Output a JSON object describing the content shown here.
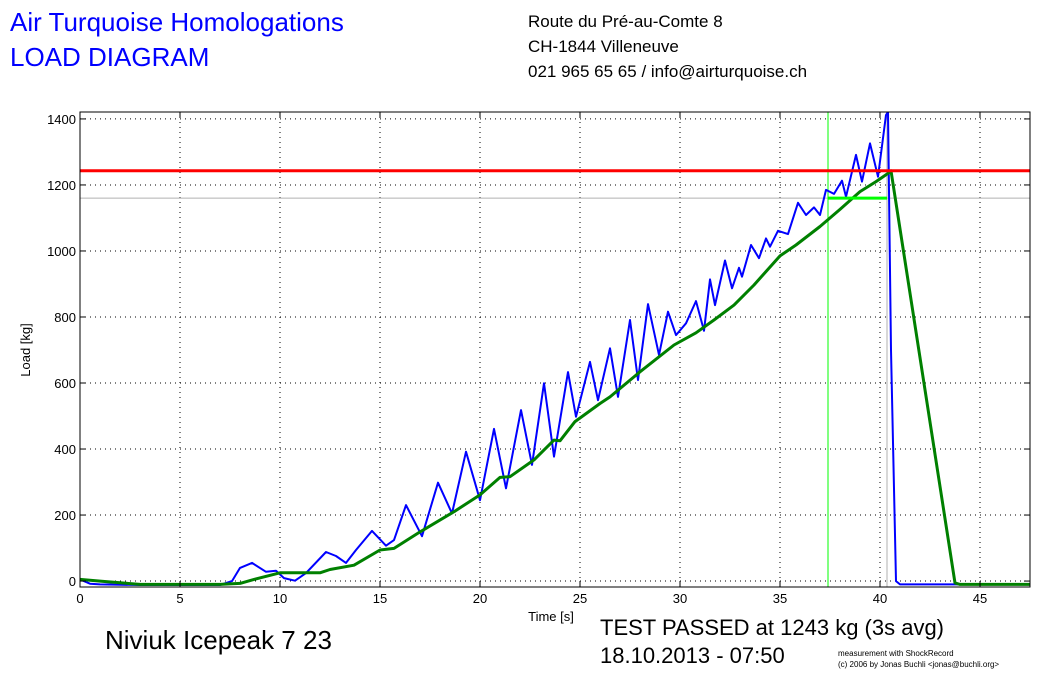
{
  "header": {
    "company": "Air Turquoise Homologations",
    "doc_title": "LOAD DIAGRAM",
    "address_line1": "Route du Pré-au-Comte 8",
    "address_line2": "CH-1844 Villeneuve",
    "contact": "021 965 65 65 / info@airturquoise.ch"
  },
  "footer": {
    "glider": "Niviuk Icepeak 7 23",
    "result": "TEST PASSED at 1243 kg (3s avg)",
    "datetime": "18.10.2013 - 07:50",
    "credit1": "measurement with ShockRecord",
    "credit2": "(c) 2006 by Jonas Buchli <jonas@buchli.org>"
  },
  "chart_data": {
    "type": "line",
    "xlabel": "Time [s]",
    "ylabel": "Load [kg]",
    "xlim": [
      0,
      47.5
    ],
    "ylim": [
      -18,
      1421
    ],
    "xticks": [
      0,
      5,
      10,
      15,
      20,
      25,
      30,
      35,
      40,
      45
    ],
    "yticks": [
      0,
      200,
      400,
      600,
      800,
      1000,
      1200,
      1400
    ],
    "grid": true,
    "colors": {
      "raw": "#0000ff",
      "avg": "#008000",
      "limit": "#ff0000",
      "marker": "#00ff00",
      "grey": "#b0b0b0"
    },
    "reference_lines": {
      "limit_load": 1243,
      "avg_level": 1160,
      "window_start": 37.4,
      "window_end": 40.35
    },
    "series": [
      {
        "key": "raw",
        "points": [
          [
            0,
            5
          ],
          [
            0.5,
            -8
          ],
          [
            1,
            -10
          ],
          [
            3,
            -12
          ],
          [
            7,
            -12
          ],
          [
            7.6,
            0
          ],
          [
            8,
            40
          ],
          [
            8.6,
            55
          ],
          [
            9.3,
            28
          ],
          [
            9.8,
            31
          ],
          [
            10.2,
            9
          ],
          [
            10.75,
            1
          ],
          [
            11.3,
            24
          ],
          [
            12.3,
            88
          ],
          [
            12.8,
            76
          ],
          [
            13.3,
            55
          ],
          [
            13.8,
            94
          ],
          [
            14.6,
            152
          ],
          [
            15.3,
            107
          ],
          [
            15.7,
            124
          ],
          [
            16.3,
            230
          ],
          [
            17.1,
            136
          ],
          [
            17.9,
            298
          ],
          [
            18.6,
            205
          ],
          [
            19.3,
            392
          ],
          [
            20,
            245
          ],
          [
            20.7,
            461
          ],
          [
            21.3,
            281
          ],
          [
            22.05,
            518
          ],
          [
            22.6,
            352
          ],
          [
            23.2,
            599
          ],
          [
            23.7,
            377
          ],
          [
            24.4,
            633
          ],
          [
            24.8,
            498
          ],
          [
            25.5,
            664
          ],
          [
            25.9,
            548
          ],
          [
            26.5,
            705
          ],
          [
            26.9,
            558
          ],
          [
            27.5,
            791
          ],
          [
            27.9,
            609
          ],
          [
            28.4,
            839
          ],
          [
            28.95,
            685
          ],
          [
            29.4,
            816
          ],
          [
            29.8,
            745
          ],
          [
            30.3,
            781
          ],
          [
            30.8,
            848
          ],
          [
            31.2,
            758
          ],
          [
            31.5,
            914
          ],
          [
            31.75,
            836
          ],
          [
            32.25,
            971
          ],
          [
            32.6,
            887
          ],
          [
            32.95,
            949
          ],
          [
            33.1,
            922
          ],
          [
            33.55,
            1018
          ],
          [
            33.95,
            978
          ],
          [
            34.3,
            1038
          ],
          [
            34.5,
            1013
          ],
          [
            34.9,
            1061
          ],
          [
            35.4,
            1051
          ],
          [
            35.9,
            1146
          ],
          [
            36.3,
            1109
          ],
          [
            36.7,
            1132
          ],
          [
            37,
            1109
          ],
          [
            37.3,
            1185
          ],
          [
            37.7,
            1173
          ],
          [
            38.1,
            1213
          ],
          [
            38.3,
            1164
          ],
          [
            38.8,
            1291
          ],
          [
            39.1,
            1210
          ],
          [
            39.5,
            1326
          ],
          [
            39.9,
            1225
          ],
          [
            40.3,
            1412
          ],
          [
            40.4,
            1421
          ],
          [
            40.55,
            700
          ],
          [
            40.8,
            0
          ],
          [
            41,
            -10
          ],
          [
            47.5,
            -10
          ]
        ]
      },
      {
        "key": "avg",
        "points": [
          [
            0,
            5
          ],
          [
            1,
            0
          ],
          [
            3,
            -10
          ],
          [
            7,
            -10
          ],
          [
            8,
            -7
          ],
          [
            8.7,
            5
          ],
          [
            10,
            25
          ],
          [
            12,
            25
          ],
          [
            12.5,
            35
          ],
          [
            13.7,
            48
          ],
          [
            15,
            94
          ],
          [
            15.7,
            99
          ],
          [
            17,
            149
          ],
          [
            18.7,
            210
          ],
          [
            20,
            261
          ],
          [
            21,
            314
          ],
          [
            21.5,
            316
          ],
          [
            22.7,
            367
          ],
          [
            23.7,
            427
          ],
          [
            24,
            425
          ],
          [
            24.75,
            483
          ],
          [
            26,
            538
          ],
          [
            26.5,
            558
          ],
          [
            28,
            634
          ],
          [
            29.7,
            715
          ],
          [
            30.8,
            752
          ],
          [
            31.7,
            791
          ],
          [
            32.7,
            836
          ],
          [
            33.7,
            897
          ],
          [
            35,
            985
          ],
          [
            35.8,
            1018
          ],
          [
            37,
            1074
          ],
          [
            38,
            1126
          ],
          [
            39,
            1180
          ],
          [
            39.8,
            1210
          ],
          [
            40.4,
            1235
          ],
          [
            40.55,
            1243
          ],
          [
            43.75,
            -6
          ],
          [
            44,
            -10
          ],
          [
            47.5,
            -10
          ]
        ]
      }
    ]
  }
}
